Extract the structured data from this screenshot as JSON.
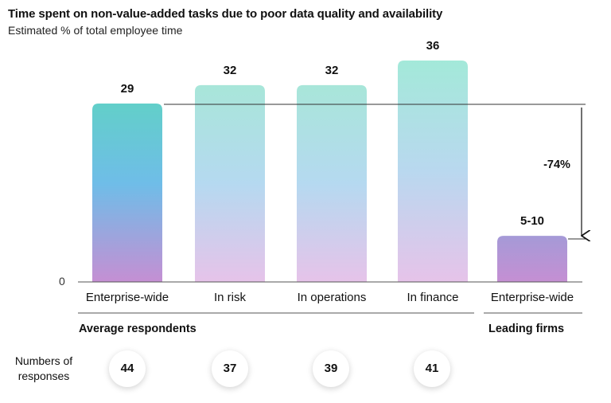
{
  "chart_data": {
    "type": "bar",
    "title": "Time spent on non-value-added tasks due to poor data quality and availability",
    "subtitle": "Estimated % of total employee time",
    "categories": [
      "Enterprise-wide",
      "In risk",
      "In operations",
      "In finance",
      "Enterprise-wide"
    ],
    "values": [
      29,
      32,
      32,
      36,
      7.5
    ],
    "value_labels": [
      "29",
      "32",
      "32",
      "36",
      "5-10"
    ],
    "groups": [
      {
        "label": "Average respondents",
        "categories": [
          0,
          1,
          2,
          3
        ]
      },
      {
        "label": "Leading firms",
        "categories": [
          4
        ]
      }
    ],
    "ylim": [
      0,
      36
    ],
    "y_tick_label": "0",
    "annotation": "-74%",
    "responses_label": "Numbers of responses",
    "responses": [
      "44",
      "37",
      "39",
      "41"
    ],
    "grid": false,
    "colors": {
      "top_teal": "#62cfc9",
      "top_mint": "#a3e9d9",
      "mid_blue": "#6fbde8",
      "bottom_purple": "#c58fd3",
      "leading_top": "#a59ad7",
      "leading_bottom": "#c58fd3"
    }
  }
}
